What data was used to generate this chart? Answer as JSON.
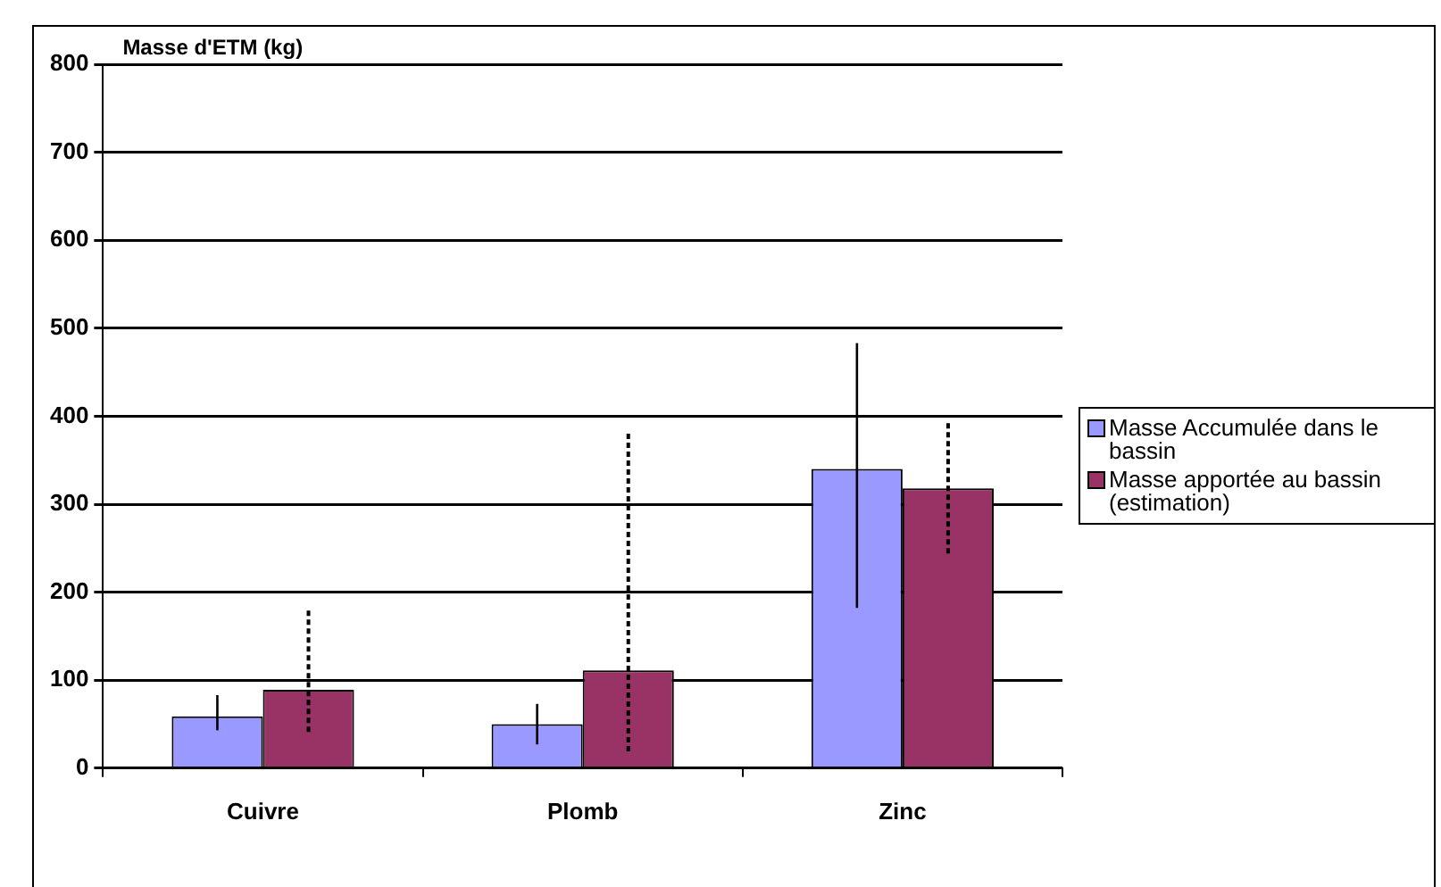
{
  "chart_data": {
    "type": "bar",
    "ylabel": "Masse d'ETM (kg)",
    "categories": [
      "Cuivre",
      "Plomb",
      "Zinc"
    ],
    "series": [
      {
        "name": "Masse Accumulée dans le bassin",
        "color": "#9999ff",
        "values": [
          59,
          50,
          340
        ],
        "errors": [
          [
            43,
            83
          ],
          [
            27,
            73
          ],
          [
            182,
            483
          ]
        ],
        "line_style": "solid"
      },
      {
        "name": "Masse apportée au bassin (estimation)",
        "color": "#993366",
        "values": [
          89,
          111,
          318
        ],
        "errors": [
          [
            41,
            180
          ],
          [
            19,
            384
          ],
          [
            244,
            393
          ]
        ],
        "line_style": "dashed"
      }
    ],
    "ylim": [
      0,
      800
    ],
    "yticks": [
      0,
      100,
      200,
      300,
      400,
      500,
      600,
      700,
      800
    ],
    "grid": "y",
    "legend": "right"
  }
}
